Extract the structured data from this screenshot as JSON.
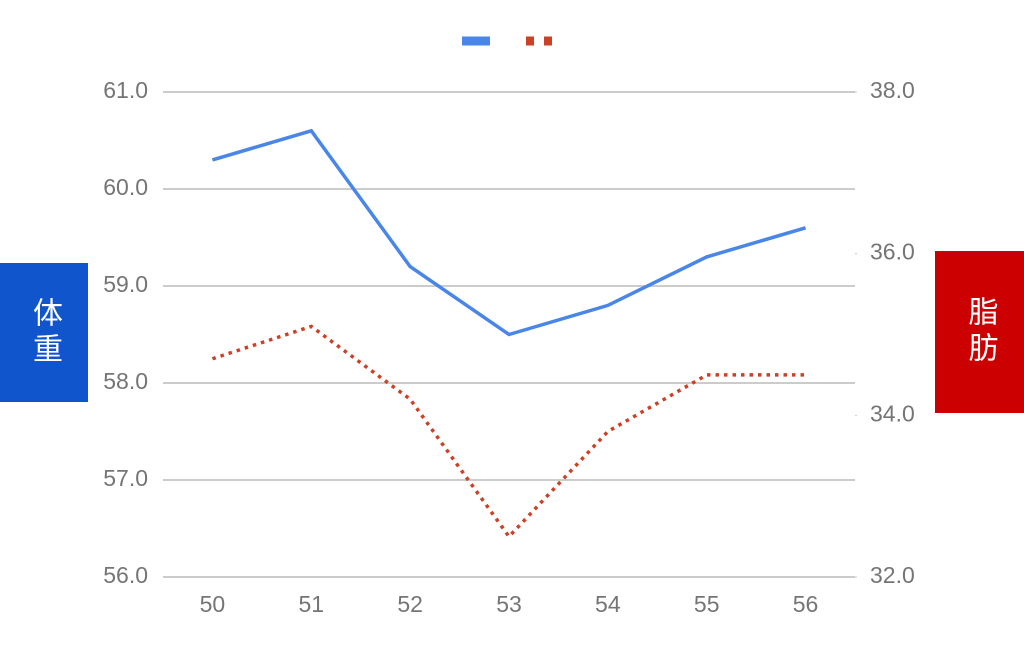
{
  "chart_data": {
    "type": "line",
    "categories": [
      "50",
      "51",
      "52",
      "53",
      "54",
      "55",
      "56"
    ],
    "ylabel": "体重",
    "y2label": "脂肪",
    "series": [
      {
        "color": "#4a86e8",
        "style": "solid",
        "values": [
          60.3,
          60.6,
          59.2,
          58.5,
          58.8,
          59.3,
          59.6
        ]
      },
      {
        "color": "#cc4125",
        "style": "dotted",
        "axis": "y2",
        "values": [
          34.7,
          35.1,
          34.2,
          32.5,
          33.8,
          34.5,
          34.5
        ]
      }
    ],
    "ylim": [
      56,
      61
    ],
    "yticks": [
      {
        "value": 56,
        "label": "56.0"
      },
      {
        "value": 57,
        "label": "57.0"
      },
      {
        "value": 58,
        "label": "58.0"
      },
      {
        "value": 59,
        "label": "59.0"
      },
      {
        "value": 60,
        "label": "60.0"
      },
      {
        "value": 61,
        "label": "61.0"
      }
    ],
    "y2lim": [
      32,
      38
    ],
    "y2ticks": [
      {
        "value": 32,
        "label": "32.0"
      },
      {
        "value": 34,
        "label": "34.0"
      },
      {
        "value": 36,
        "label": "36.0"
      },
      {
        "value": 38,
        "label": "38.0"
      }
    ],
    "ylabel_color": "#1155cc",
    "y2label_color": "#cc0000",
    "grid": true
  }
}
